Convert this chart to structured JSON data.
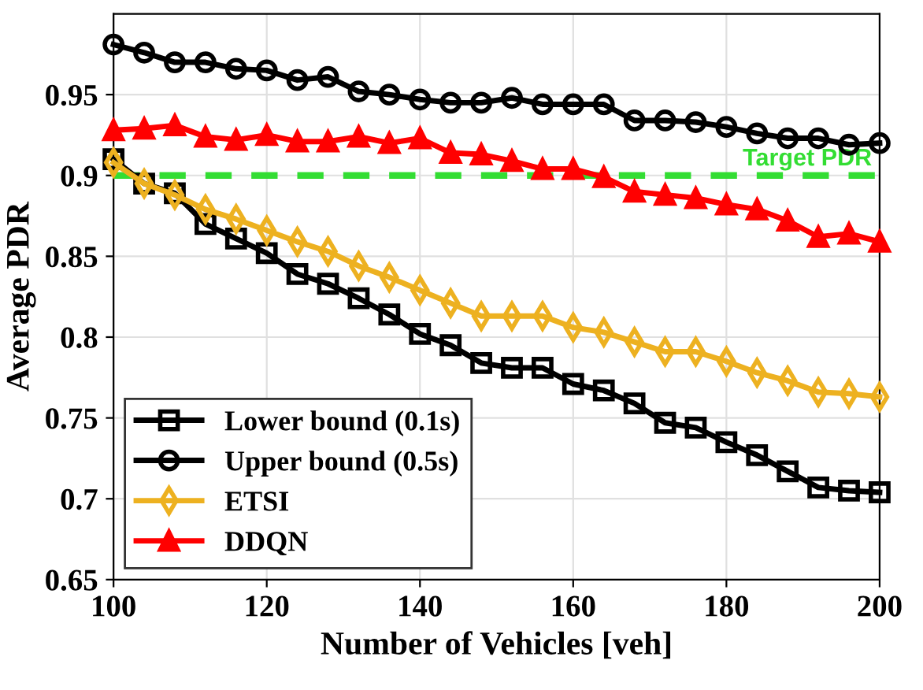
{
  "chart_data": {
    "type": "line",
    "xlabel": "Number of Vehicles [veh]",
    "ylabel": "Average PDR",
    "x": [
      100,
      104,
      108,
      112,
      116,
      120,
      124,
      128,
      132,
      136,
      140,
      144,
      148,
      152,
      156,
      160,
      164,
      168,
      172,
      176,
      180,
      184,
      188,
      192,
      196,
      200
    ],
    "xlim": [
      100,
      200
    ],
    "xticks": [
      100,
      120,
      140,
      160,
      180,
      200
    ],
    "ylim": [
      0.65,
      1.0
    ],
    "yticks": [
      0.65,
      0.7,
      0.75,
      0.8,
      0.85,
      0.9,
      0.95
    ],
    "grid": true,
    "legend": "bottom left",
    "line_style": "solid",
    "series": [
      {
        "name": "Lower bound (0.1s)",
        "color": "#000000",
        "marker": "square",
        "values": [
          0.91,
          0.895,
          0.889,
          0.87,
          0.861,
          0.852,
          0.839,
          0.833,
          0.824,
          0.814,
          0.802,
          0.795,
          0.784,
          0.781,
          0.781,
          0.771,
          0.767,
          0.759,
          0.747,
          0.744,
          0.735,
          0.727,
          0.717,
          0.707,
          0.705,
          0.704
        ]
      },
      {
        "name": "Upper bound (0.5s)",
        "color": "#000000",
        "marker": "circle",
        "values": [
          0.981,
          0.976,
          0.97,
          0.97,
          0.966,
          0.965,
          0.959,
          0.961,
          0.952,
          0.95,
          0.947,
          0.945,
          0.945,
          0.948,
          0.944,
          0.944,
          0.944,
          0.934,
          0.934,
          0.933,
          0.93,
          0.926,
          0.923,
          0.923,
          0.919,
          0.92
        ]
      },
      {
        "name": "ETSI",
        "color": "#edb120",
        "marker": "diamond",
        "values": [
          0.908,
          0.895,
          0.888,
          0.879,
          0.873,
          0.866,
          0.859,
          0.853,
          0.844,
          0.837,
          0.829,
          0.821,
          0.813,
          0.813,
          0.813,
          0.806,
          0.803,
          0.797,
          0.791,
          0.791,
          0.785,
          0.778,
          0.773,
          0.766,
          0.765,
          0.763
        ]
      },
      {
        "name": "DDQN",
        "color": "#ff0000",
        "marker": "triangle",
        "values": [
          0.928,
          0.929,
          0.931,
          0.924,
          0.922,
          0.925,
          0.921,
          0.921,
          0.924,
          0.92,
          0.923,
          0.914,
          0.913,
          0.909,
          0.904,
          0.904,
          0.899,
          0.89,
          0.888,
          0.886,
          0.882,
          0.879,
          0.872,
          0.862,
          0.864,
          0.859
        ]
      }
    ],
    "ref_lines": [
      {
        "axis": "y",
        "value": 0.9,
        "label": "Target PDR",
        "color": "#33dd33",
        "line_style": "dashed"
      }
    ]
  }
}
